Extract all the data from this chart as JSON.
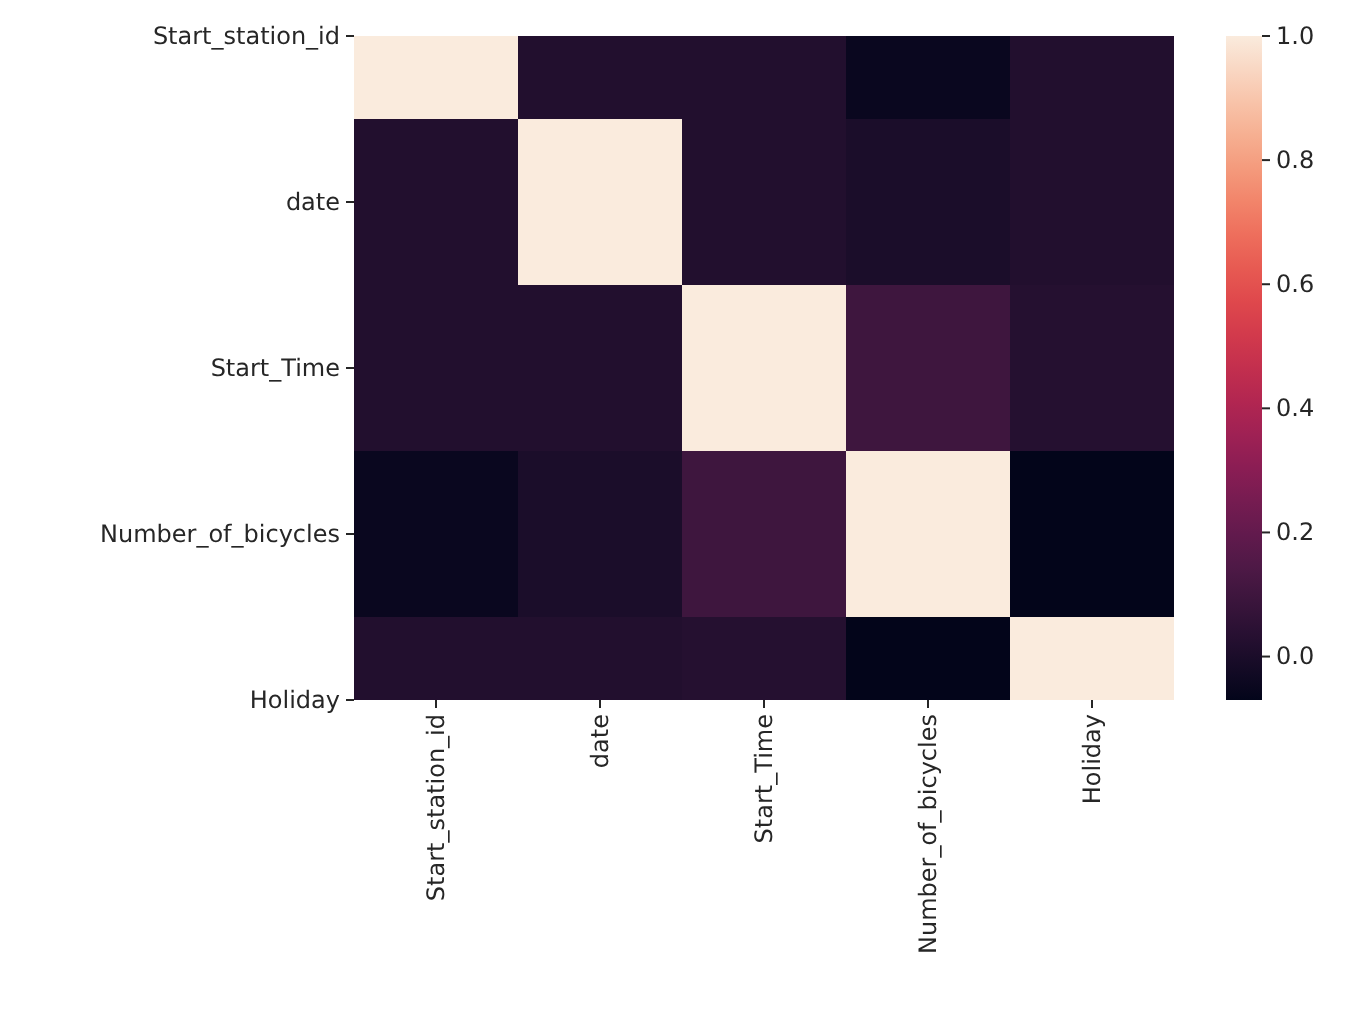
{
  "chart_data": {
    "type": "heatmap",
    "categories": [
      "Start_station_id",
      "date",
      "Start_Time",
      "Number_of_bicycles",
      "Holiday"
    ],
    "y_categories": [
      "Start_station_id",
      "date",
      "Start_Time",
      "Number_of_bicycles",
      "Holiday"
    ],
    "cells": [
      [
        1.0,
        0.02,
        0.02,
        -0.05,
        0.02
      ],
      [
        0.02,
        1.0,
        0.02,
        0.0,
        0.02
      ],
      [
        0.02,
        0.02,
        1.0,
        0.1,
        0.03
      ],
      [
        -0.05,
        0.0,
        0.1,
        1.0,
        -0.07
      ],
      [
        0.02,
        0.02,
        0.03,
        -0.07,
        1.0
      ]
    ],
    "clim": [
      -0.07,
      1.0
    ],
    "cticks": [
      {
        "value": 0,
        "label": "0.0"
      },
      {
        "value": 0.2,
        "label": "0.2"
      },
      {
        "value": 0.4,
        "label": "0.4"
      },
      {
        "value": 0.6,
        "label": "0.6"
      },
      {
        "value": 0.8,
        "label": "0.8"
      },
      {
        "value": 1,
        "label": "1.0"
      }
    ]
  }
}
